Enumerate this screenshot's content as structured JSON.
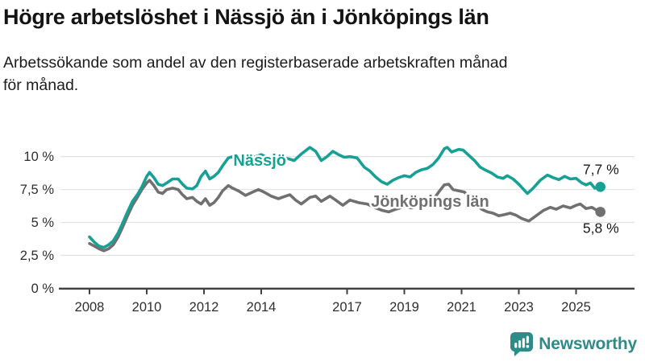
{
  "page": {
    "title": "Högre arbetslöshet i Nässjö än i Jönköpings län",
    "subtitle_line1": "Arbetssökande som andel av den registerbaserade arbetskraften månad",
    "subtitle_line2": "för månad."
  },
  "chart_data": {
    "type": "line",
    "title": "Högre arbetslöshet i Nässjö än i Jönköpings län",
    "subtitle": "Arbetssökande som andel av den registerbaserade arbetskraften månad för månad.",
    "unit": "%",
    "grid": true,
    "x_range": [
      2008,
      2025.85
    ],
    "y_range": [
      0,
      11.3
    ],
    "x_axis": {
      "ticks": [
        2008,
        2010,
        2012,
        2014,
        2017,
        2019,
        2021,
        2023,
        2025
      ]
    },
    "y_axis": {
      "ticks": [
        {
          "value": 0,
          "label": "0 %"
        },
        {
          "value": 2.5,
          "label": "2,5 %"
        },
        {
          "value": 5,
          "label": "5 %"
        },
        {
          "value": 7.5,
          "label": "7,5 %"
        },
        {
          "value": 10,
          "label": "10 %"
        }
      ]
    },
    "series": [
      {
        "name": "Nässjö",
        "color": "#17A094",
        "end_label": "7,7 %",
        "end_value": 7.7,
        "value_label_position": "above",
        "label_at": [
          2013.95,
          9.3
        ],
        "points": [
          [
            2008.0,
            3.9
          ],
          [
            2008.17,
            3.5
          ],
          [
            2008.33,
            3.2
          ],
          [
            2008.5,
            3.1
          ],
          [
            2008.67,
            3.3
          ],
          [
            2008.83,
            3.6
          ],
          [
            2009.0,
            4.2
          ],
          [
            2009.17,
            5.0
          ],
          [
            2009.33,
            5.8
          ],
          [
            2009.5,
            6.6
          ],
          [
            2009.67,
            7.1
          ],
          [
            2009.83,
            7.7
          ],
          [
            2010.0,
            8.5
          ],
          [
            2010.1,
            8.8
          ],
          [
            2010.25,
            8.4
          ],
          [
            2010.4,
            7.9
          ],
          [
            2010.55,
            7.8
          ],
          [
            2010.7,
            8.0
          ],
          [
            2010.9,
            8.3
          ],
          [
            2011.1,
            8.3
          ],
          [
            2011.25,
            7.9
          ],
          [
            2011.4,
            7.6
          ],
          [
            2011.6,
            7.55
          ],
          [
            2011.75,
            7.8
          ],
          [
            2011.9,
            8.5
          ],
          [
            2012.05,
            8.9
          ],
          [
            2012.2,
            8.3
          ],
          [
            2012.35,
            8.5
          ],
          [
            2012.5,
            8.8
          ],
          [
            2012.65,
            9.3
          ],
          [
            2012.85,
            9.9
          ],
          [
            2013.0,
            10.0
          ],
          [
            2013.2,
            9.8
          ],
          [
            2013.4,
            9.65
          ],
          [
            2013.6,
            9.85
          ],
          [
            2013.8,
            10.0
          ],
          [
            2014.0,
            10.15
          ],
          [
            2014.2,
            9.95
          ],
          [
            2014.4,
            9.85
          ],
          [
            2014.6,
            9.95
          ],
          [
            2014.8,
            9.9
          ],
          [
            2015.0,
            9.8
          ],
          [
            2015.15,
            9.7
          ],
          [
            2015.4,
            10.2
          ],
          [
            2015.7,
            10.7
          ],
          [
            2015.9,
            10.4
          ],
          [
            2016.1,
            9.7
          ],
          [
            2016.3,
            10.0
          ],
          [
            2016.5,
            10.4
          ],
          [
            2016.7,
            10.15
          ],
          [
            2016.9,
            9.95
          ],
          [
            2017.1,
            10.0
          ],
          [
            2017.35,
            9.9
          ],
          [
            2017.6,
            9.2
          ],
          [
            2017.8,
            8.9
          ],
          [
            2018.0,
            8.45
          ],
          [
            2018.2,
            8.1
          ],
          [
            2018.4,
            7.9
          ],
          [
            2018.6,
            8.2
          ],
          [
            2018.8,
            8.4
          ],
          [
            2019.0,
            8.55
          ],
          [
            2019.2,
            8.45
          ],
          [
            2019.4,
            8.8
          ],
          [
            2019.6,
            9.0
          ],
          [
            2019.8,
            9.1
          ],
          [
            2020.0,
            9.4
          ],
          [
            2020.2,
            9.9
          ],
          [
            2020.4,
            10.6
          ],
          [
            2020.5,
            10.7
          ],
          [
            2020.65,
            10.35
          ],
          [
            2020.9,
            10.55
          ],
          [
            2021.05,
            10.5
          ],
          [
            2021.25,
            10.1
          ],
          [
            2021.45,
            9.7
          ],
          [
            2021.65,
            9.2
          ],
          [
            2021.85,
            8.95
          ],
          [
            2022.05,
            8.75
          ],
          [
            2022.25,
            8.45
          ],
          [
            2022.45,
            8.35
          ],
          [
            2022.6,
            8.55
          ],
          [
            2022.8,
            8.3
          ],
          [
            2023.0,
            7.9
          ],
          [
            2023.3,
            7.2
          ],
          [
            2023.5,
            7.6
          ],
          [
            2023.75,
            8.2
          ],
          [
            2024.0,
            8.6
          ],
          [
            2024.2,
            8.4
          ],
          [
            2024.4,
            8.25
          ],
          [
            2024.6,
            8.5
          ],
          [
            2024.8,
            8.3
          ],
          [
            2025.0,
            8.35
          ],
          [
            2025.2,
            8.0
          ],
          [
            2025.35,
            7.85
          ],
          [
            2025.5,
            8.0
          ],
          [
            2025.65,
            7.6
          ],
          [
            2025.85,
            7.7
          ]
        ]
      },
      {
        "name": "Jönköpings län",
        "color": "#707070",
        "end_label": "5,8 %",
        "end_value": 5.8,
        "value_label_position": "below",
        "label_at": [
          2019.9,
          6.2
        ],
        "points": [
          [
            2008.0,
            3.4
          ],
          [
            2008.17,
            3.2
          ],
          [
            2008.33,
            3.0
          ],
          [
            2008.5,
            2.85
          ],
          [
            2008.67,
            3.0
          ],
          [
            2008.83,
            3.3
          ],
          [
            2009.0,
            3.9
          ],
          [
            2009.17,
            4.7
          ],
          [
            2009.33,
            5.5
          ],
          [
            2009.5,
            6.3
          ],
          [
            2009.67,
            6.9
          ],
          [
            2009.83,
            7.5
          ],
          [
            2010.0,
            8.0
          ],
          [
            2010.1,
            8.2
          ],
          [
            2010.25,
            7.8
          ],
          [
            2010.4,
            7.3
          ],
          [
            2010.55,
            7.2
          ],
          [
            2010.7,
            7.5
          ],
          [
            2010.9,
            7.6
          ],
          [
            2011.1,
            7.5
          ],
          [
            2011.25,
            7.1
          ],
          [
            2011.4,
            6.8
          ],
          [
            2011.6,
            6.9
          ],
          [
            2011.75,
            6.6
          ],
          [
            2011.9,
            6.4
          ],
          [
            2012.05,
            6.8
          ],
          [
            2012.2,
            6.3
          ],
          [
            2012.35,
            6.5
          ],
          [
            2012.5,
            6.9
          ],
          [
            2012.65,
            7.4
          ],
          [
            2012.85,
            7.8
          ],
          [
            2013.0,
            7.6
          ],
          [
            2013.2,
            7.4
          ],
          [
            2013.45,
            7.05
          ],
          [
            2013.7,
            7.3
          ],
          [
            2013.9,
            7.5
          ],
          [
            2014.1,
            7.3
          ],
          [
            2014.35,
            7.0
          ],
          [
            2014.6,
            6.8
          ],
          [
            2014.85,
            7.0
          ],
          [
            2015.0,
            7.1
          ],
          [
            2015.2,
            6.7
          ],
          [
            2015.4,
            6.4
          ],
          [
            2015.7,
            6.9
          ],
          [
            2015.9,
            7.0
          ],
          [
            2016.1,
            6.6
          ],
          [
            2016.4,
            7.0
          ],
          [
            2016.6,
            6.7
          ],
          [
            2016.85,
            6.3
          ],
          [
            2017.1,
            6.7
          ],
          [
            2017.4,
            6.5
          ],
          [
            2017.7,
            6.4
          ],
          [
            2018.0,
            6.1
          ],
          [
            2018.25,
            5.9
          ],
          [
            2018.45,
            5.8
          ],
          [
            2018.7,
            6.0
          ],
          [
            2019.0,
            6.2
          ],
          [
            2019.25,
            6.1
          ],
          [
            2019.5,
            6.3
          ],
          [
            2019.75,
            6.4
          ],
          [
            2020.0,
            6.7
          ],
          [
            2020.2,
            7.3
          ],
          [
            2020.4,
            7.85
          ],
          [
            2020.55,
            7.9
          ],
          [
            2020.7,
            7.5
          ],
          [
            2020.9,
            7.4
          ],
          [
            2021.1,
            7.3
          ],
          [
            2021.3,
            6.9
          ],
          [
            2021.5,
            6.4
          ],
          [
            2021.7,
            6.0
          ],
          [
            2021.9,
            5.8
          ],
          [
            2022.1,
            5.7
          ],
          [
            2022.3,
            5.5
          ],
          [
            2022.5,
            5.6
          ],
          [
            2022.7,
            5.7
          ],
          [
            2022.9,
            5.55
          ],
          [
            2023.1,
            5.3
          ],
          [
            2023.35,
            5.1
          ],
          [
            2023.6,
            5.5
          ],
          [
            2023.85,
            5.9
          ],
          [
            2024.1,
            6.15
          ],
          [
            2024.3,
            6.0
          ],
          [
            2024.55,
            6.25
          ],
          [
            2024.8,
            6.1
          ],
          [
            2025.0,
            6.3
          ],
          [
            2025.15,
            6.4
          ],
          [
            2025.35,
            6.05
          ],
          [
            2025.55,
            6.15
          ],
          [
            2025.7,
            5.95
          ],
          [
            2025.85,
            5.8
          ]
        ]
      }
    ]
  },
  "footer": {
    "brand": "Newsworthy",
    "logo_color": "#2E8B87",
    "logo_icon": "speech-bubble-bar-chart"
  }
}
